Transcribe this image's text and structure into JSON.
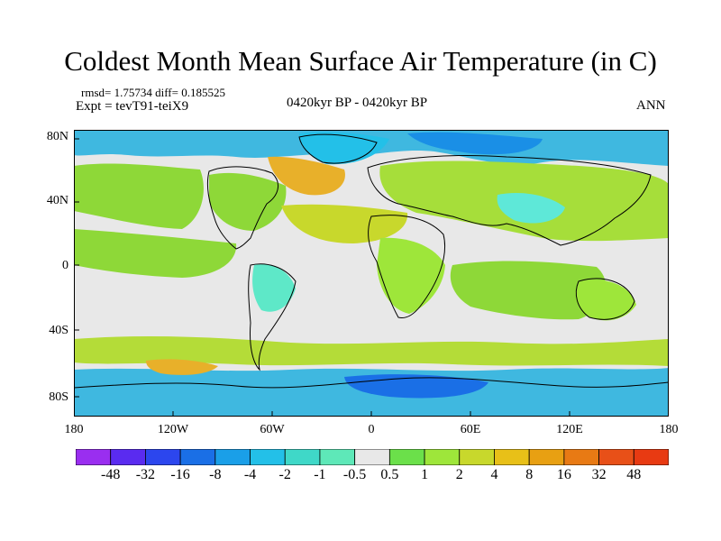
{
  "title": "Coldest Month Mean Surface Air Temperature (in C)",
  "stats": {
    "rmsd": "rmsd= 1.75734",
    "diff": "diff= 0.185525"
  },
  "expt": "Expt = tevT91-teiX9",
  "period": "0420kyr BP - 0420kyr BP",
  "season": "ANN",
  "lat_ticks": [
    "80N",
    "40N",
    "0",
    "40S",
    "80S"
  ],
  "lon_ticks": [
    "180",
    "120W",
    "60W",
    "0",
    "60E",
    "120E",
    "180"
  ],
  "colorbar": {
    "labels": [
      "-48",
      "-32",
      "-16",
      "-8",
      "-4",
      "-2",
      "-1",
      "-0.5",
      "0.5",
      "1",
      "2",
      "4",
      "8",
      "16",
      "32",
      "48"
    ],
    "colors": [
      "#9a2ef0",
      "#5a2bf0",
      "#2c46ee",
      "#1a6fe6",
      "#1a9fe8",
      "#23c0e8",
      "#3fd8c8",
      "#5ee8b8",
      "#e8e8e8",
      "#6be04a",
      "#9ee63a",
      "#c8d82c",
      "#e8c018",
      "#e8a012",
      "#e87a14",
      "#e85018",
      "#e83a12"
    ]
  },
  "colors": {
    "ocean": "#e8e8e8",
    "coast": "#000000"
  }
}
